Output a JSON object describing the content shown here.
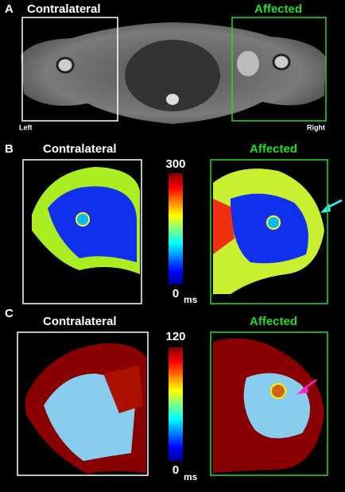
{
  "panels": [
    {
      "label": "A",
      "left_title": "Contralateral",
      "right_title": "Affected",
      "left_side": "Left",
      "right_side": "Right"
    },
    {
      "label": "B",
      "left_title": "Contralateral",
      "right_title": "Affected",
      "colorbar": {
        "max": 300,
        "min": 0,
        "unit": "ms"
      }
    },
    {
      "label": "C",
      "left_title": "Contralateral",
      "right_title": "Affected",
      "colorbar": {
        "max": 120,
        "min": 0,
        "unit": "ms"
      }
    }
  ]
}
